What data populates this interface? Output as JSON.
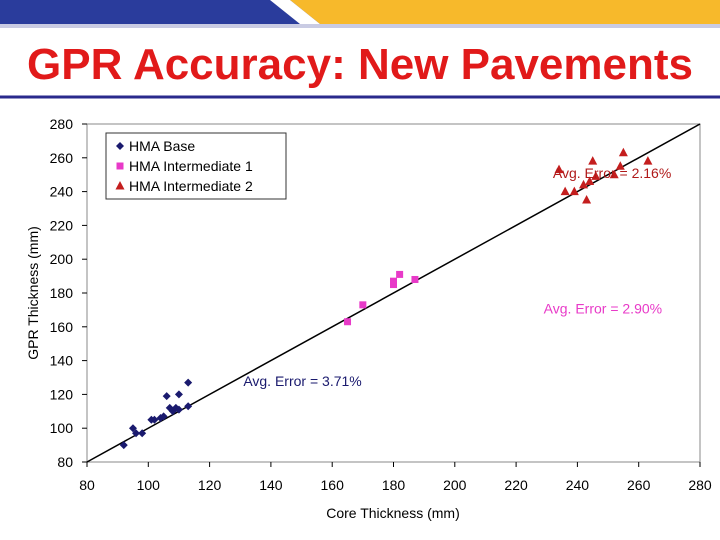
{
  "slide": {
    "title": "GPR Accuracy: New Pavements",
    "colors": {
      "title": "#e11a1a",
      "banner_blue": "#2a3c9c",
      "banner_gold": "#f7b92b",
      "divider": "#2a2a8c"
    }
  },
  "chart_data": {
    "type": "scatter",
    "xlabel": "Core Thickness (mm)",
    "ylabel": "GPR Thickness (mm)",
    "xlim": [
      80,
      280
    ],
    "ylim": [
      80,
      280
    ],
    "x_ticks": [
      80,
      100,
      120,
      140,
      160,
      180,
      200,
      220,
      240,
      260,
      280
    ],
    "y_ticks": [
      80,
      100,
      120,
      140,
      160,
      180,
      200,
      220,
      240,
      260,
      280
    ],
    "grid": false,
    "legend_position": "top-left",
    "reference_line": {
      "from": [
        80,
        80
      ],
      "to": [
        280,
        280
      ],
      "color": "#000000"
    },
    "series": [
      {
        "name": "HMA Base",
        "marker": "diamond",
        "color": "#1a1a6e",
        "points": [
          [
            92,
            90
          ],
          [
            95,
            100
          ],
          [
            96,
            97
          ],
          [
            98,
            97
          ],
          [
            101,
            105
          ],
          [
            102,
            105
          ],
          [
            104,
            106
          ],
          [
            105,
            107
          ],
          [
            106,
            119
          ],
          [
            107,
            112
          ],
          [
            108,
            110
          ],
          [
            109,
            112
          ],
          [
            110,
            120
          ],
          [
            110,
            111
          ],
          [
            113,
            127
          ],
          [
            113,
            113
          ]
        ]
      },
      {
        "name": "HMA Intermediate 1",
        "marker": "square",
        "color": "#e83ac8",
        "points": [
          [
            165,
            163
          ],
          [
            170,
            173
          ],
          [
            180,
            185
          ],
          [
            180,
            187
          ],
          [
            182,
            191
          ],
          [
            187,
            188
          ]
        ]
      },
      {
        "name": "HMA Intermediate 2",
        "marker": "triangle",
        "color": "#c41e1e",
        "points": [
          [
            234,
            253
          ],
          [
            236,
            240
          ],
          [
            239,
            240
          ],
          [
            242,
            244
          ],
          [
            243,
            235
          ],
          [
            244,
            246
          ],
          [
            245,
            258
          ],
          [
            246,
            249
          ],
          [
            252,
            250
          ],
          [
            254,
            255
          ],
          [
            255,
            263
          ],
          [
            263,
            258
          ]
        ]
      }
    ],
    "annotations": [
      {
        "text": "Avg. Error = 2.16%",
        "x": 232,
        "y": 248,
        "color": "#b01a1a"
      },
      {
        "text": "Avg. Error = 2.90%",
        "x": 229,
        "y": 168,
        "color": "#e83ac8"
      },
      {
        "text": "Avg. Error = 3.71%",
        "x": 131,
        "y": 125,
        "color": "#1a1a6e"
      }
    ]
  }
}
